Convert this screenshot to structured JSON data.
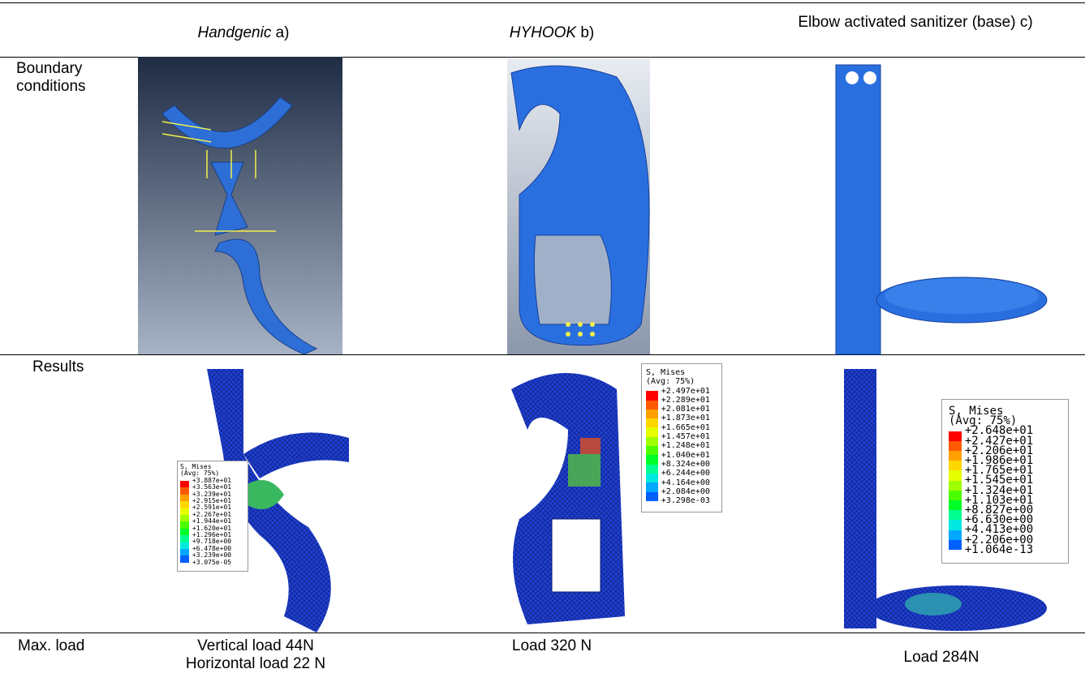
{
  "header": {
    "columns": [
      {
        "name": "Handgenic",
        "suffix": "a)"
      },
      {
        "name": "HYHOOK",
        "suffix": "b)"
      },
      {
        "text": "Elbow activated sanitizer (base) c)"
      }
    ]
  },
  "rows": [
    {
      "label": "Boundary conditions"
    },
    {
      "label": "Results"
    },
    {
      "label": "Max. load",
      "cells": [
        [
          "Vertical load 44N",
          "Horizontal load 22 N"
        ],
        [
          "Load 320 N"
        ],
        [
          "Load 284N"
        ]
      ]
    }
  ],
  "results": {
    "legends": [
      {
        "title": "S, Mises",
        "subtitle": "(Avg: 75%)",
        "values": [
          "+3.887e+01",
          "+3.563e+01",
          "+3.239e+01",
          "+2.915e+01",
          "+2.591e+01",
          "+2.267e+01",
          "+1.944e+01",
          "+1.620e+01",
          "+1.296e+01",
          "+9.718e+00",
          "+6.478e+00",
          "+3.239e+00",
          "+3.075e-05"
        ]
      },
      {
        "title": "S, Mises",
        "subtitle": "(Avg: 75%)",
        "values": [
          "+2.497e+01",
          "+2.289e+01",
          "+2.081e+01",
          "+1.873e+01",
          "+1.665e+01",
          "+1.457e+01",
          "+1.248e+01",
          "+1.040e+01",
          "+8.324e+00",
          "+6.244e+00",
          "+4.164e+00",
          "+2.084e+00",
          "+3.298e-03"
        ]
      },
      {
        "title": "S, Mises",
        "subtitle": "(Avg: 75%)",
        "values": [
          "+2.648e+01",
          "+2.427e+01",
          "+2.206e+01",
          "+1.986e+01",
          "+1.765e+01",
          "+1.545e+01",
          "+1.324e+01",
          "+1.103e+01",
          "+8.827e+00",
          "+6.630e+00",
          "+4.413e+00",
          "+2.206e+00",
          "+1.064e-13"
        ]
      }
    ]
  }
}
